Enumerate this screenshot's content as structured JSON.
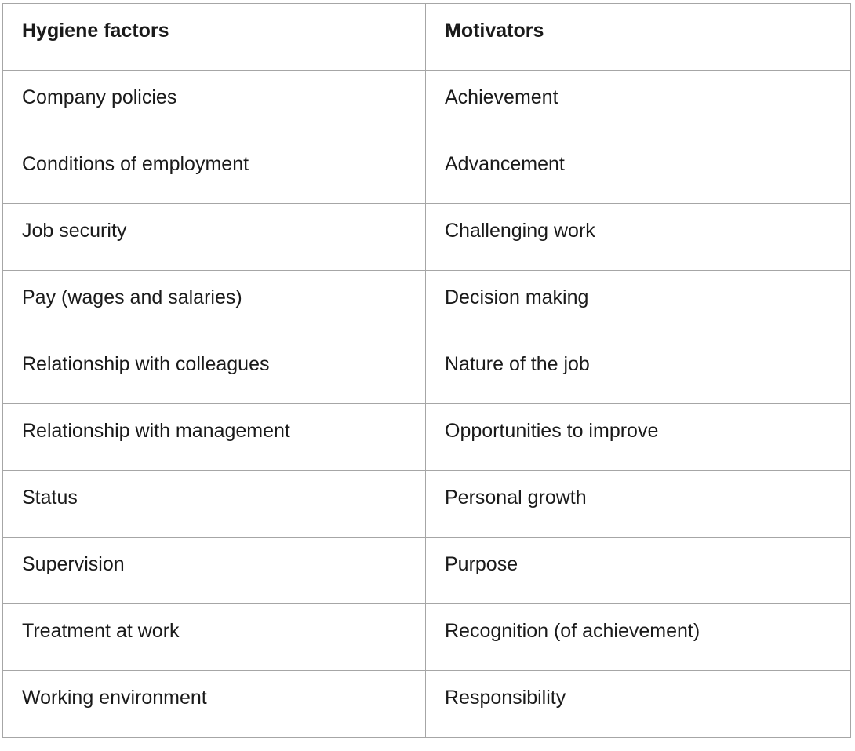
{
  "table": {
    "headers": [
      "Hygiene factors",
      "Motivators"
    ],
    "rows": [
      [
        "Company policies",
        "Achievement"
      ],
      [
        "Conditions of employment",
        "Advancement"
      ],
      [
        "Job security",
        "Challenging work"
      ],
      [
        "Pay (wages and salaries)",
        "Decision making"
      ],
      [
        "Relationship with colleagues",
        "Nature of the job"
      ],
      [
        "Relationship with management",
        "Opportunities to improve"
      ],
      [
        "Status",
        "Personal growth"
      ],
      [
        "Supervision",
        "Purpose"
      ],
      [
        "Treatment at work",
        "Recognition (of achievement)"
      ],
      [
        "Working environment",
        "Responsibility"
      ]
    ]
  }
}
